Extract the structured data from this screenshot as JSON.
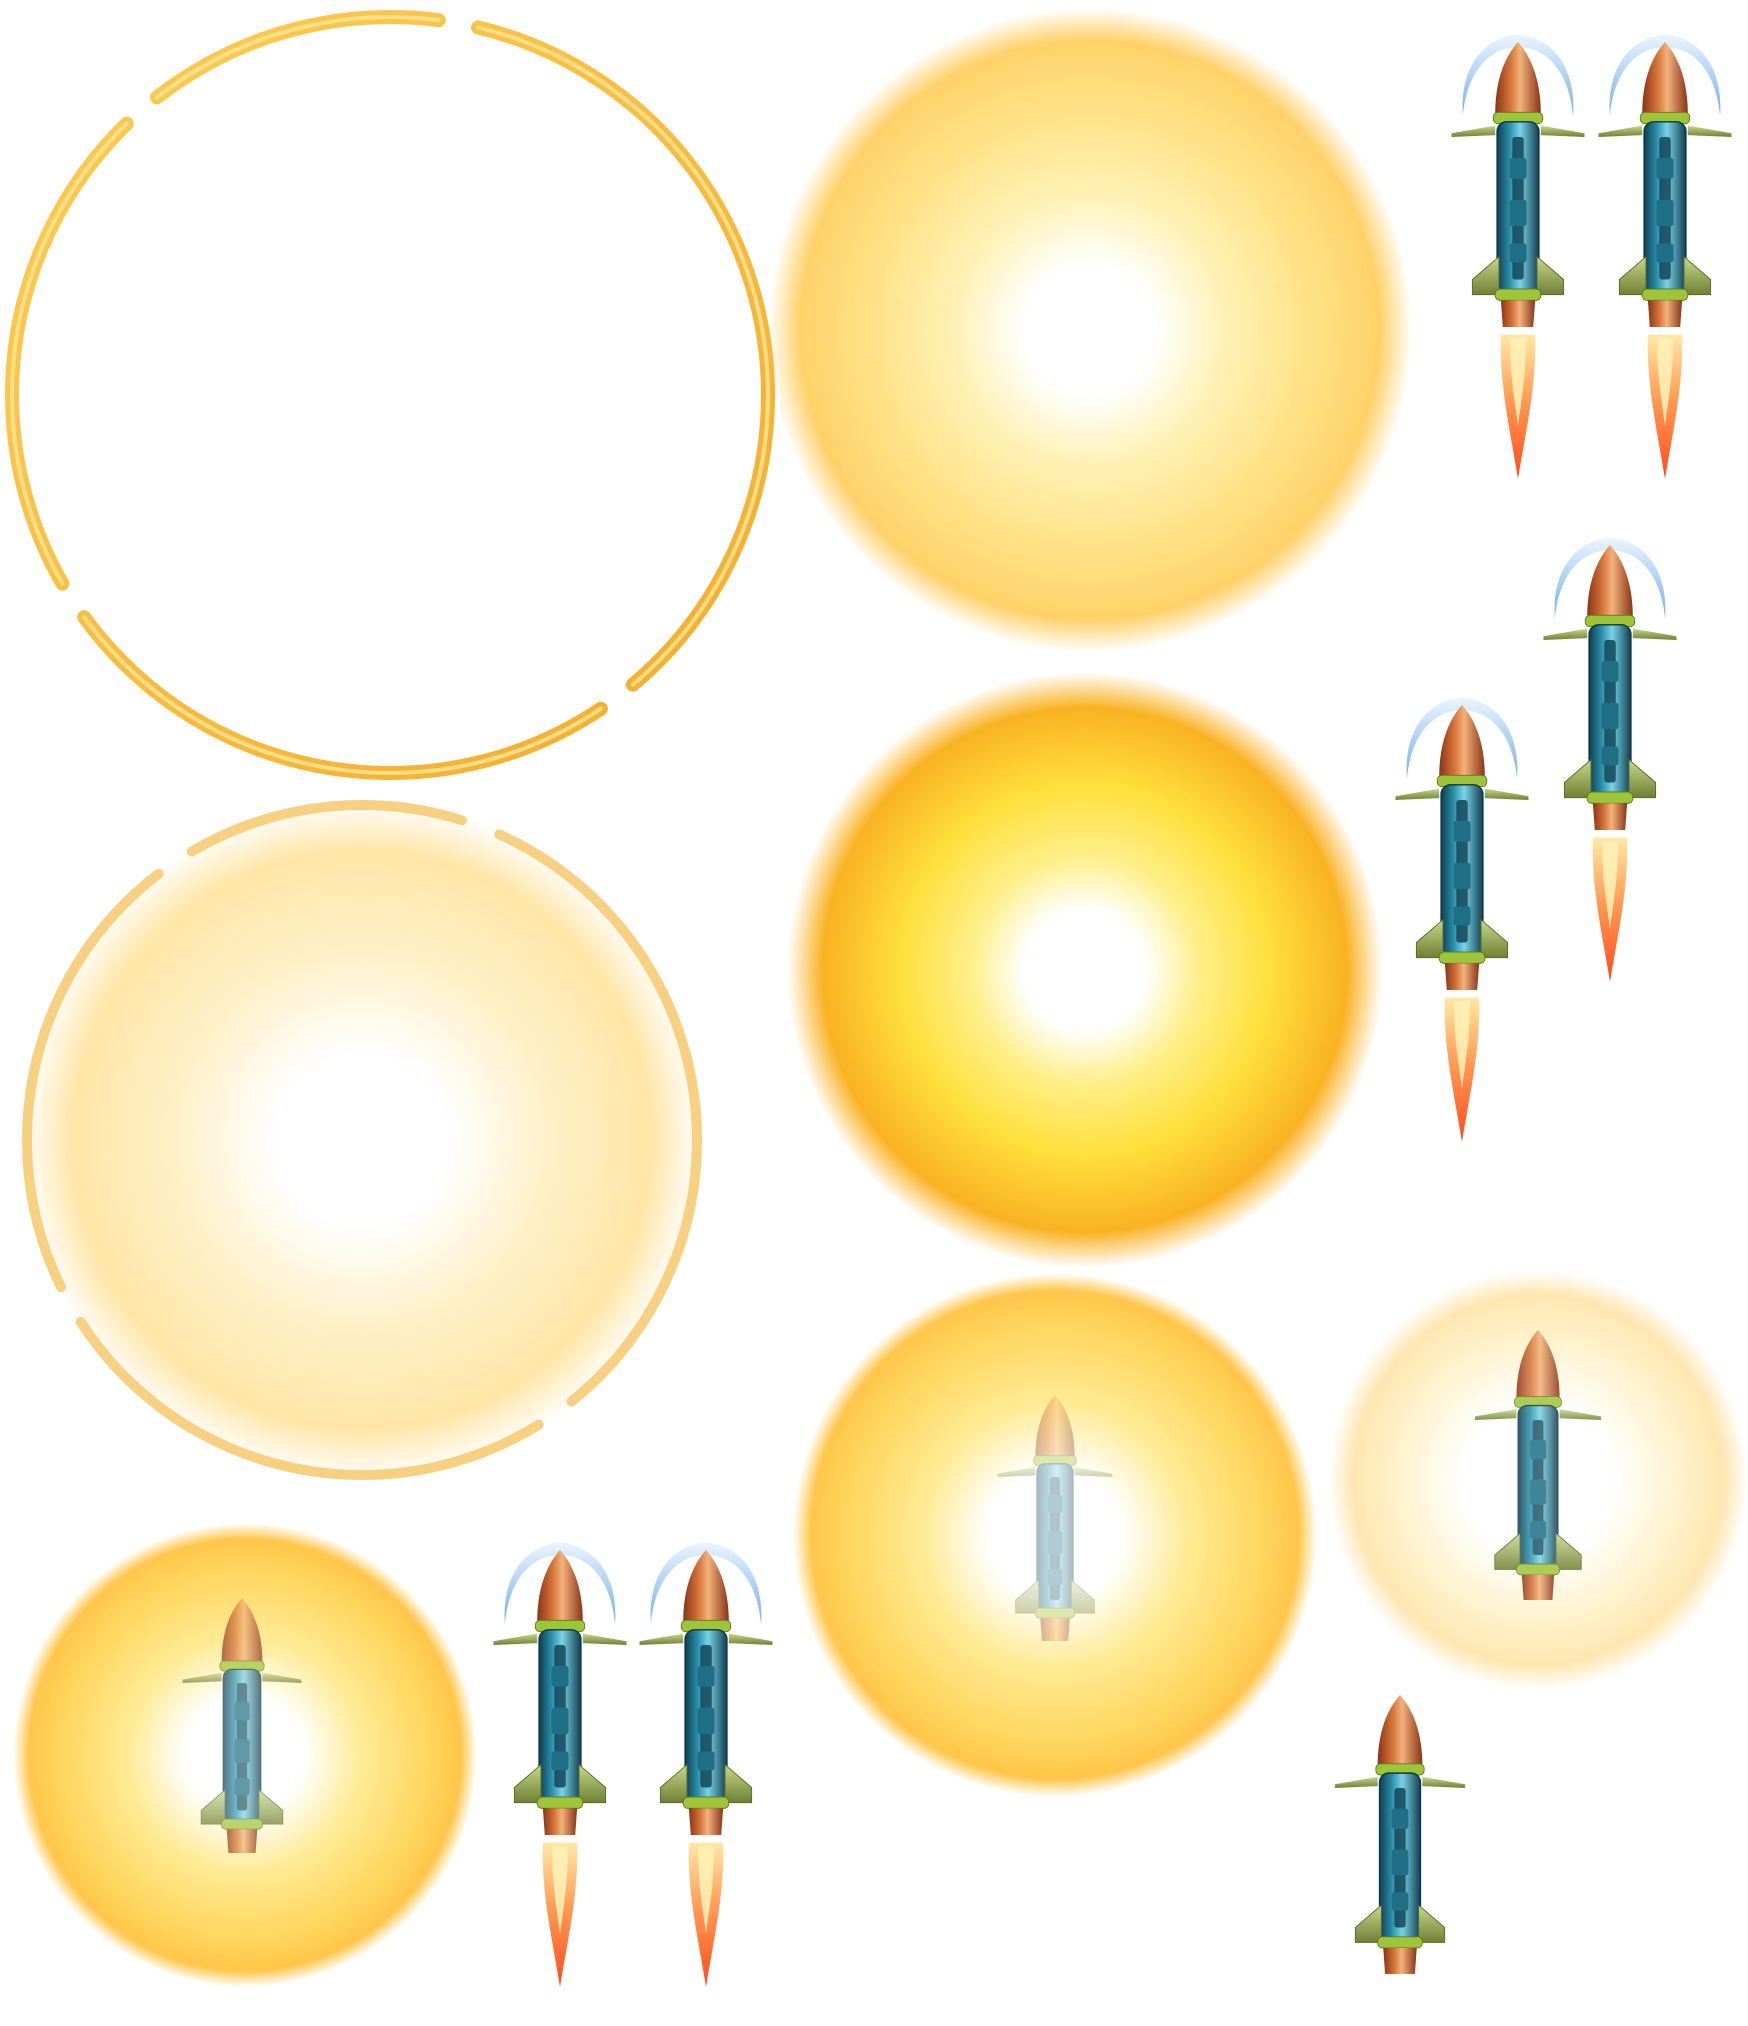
{
  "sprite_sheet": {
    "background_color": "#ffffff",
    "palette": {
      "ring_gold": "#f2b53a",
      "ring_gold_light": "#ffd77a",
      "glow_yellow": "#ffd54a",
      "glow_orange": "#f7a81e",
      "glow_pale": "#ffe7a8",
      "glow_white": "#ffffff",
      "nose_cone_copper": "#c8662a",
      "nose_cone_light": "#f0b078",
      "body_teal": "#2f9fb8",
      "body_teal_dark": "#1d5f75",
      "body_teal_light": "#7fd8ea",
      "fin_olive": "#8fa14a",
      "fin_olive_light": "#c4d57a",
      "band_green": "#9ec43a",
      "flame_orange": "#ff6a2b",
      "flame_yellow": "#ffd06a",
      "shield_arc_blue": "#7fb7e8"
    },
    "sprites": [
      {
        "name": "broken-ring-frame",
        "kind": "ring"
      },
      {
        "name": "explosion-glow-large",
        "kind": "glow"
      },
      {
        "name": "missile-with-shield-and-flame",
        "kind": "missile"
      },
      {
        "name": "missile-with-shield-and-flame",
        "kind": "missile"
      },
      {
        "name": "missile-with-shield-and-flame",
        "kind": "missile"
      },
      {
        "name": "missile-with-shield-and-flame",
        "kind": "missile"
      },
      {
        "name": "ring-with-glow",
        "kind": "ring-glow"
      },
      {
        "name": "explosion-glow-bright",
        "kind": "glow"
      },
      {
        "name": "explosion-glow-with-missile",
        "kind": "glow-missile"
      },
      {
        "name": "explosion-glow-with-faded-missile",
        "kind": "glow-missile"
      },
      {
        "name": "explosion-glow-with-missile-pale",
        "kind": "glow-missile"
      },
      {
        "name": "missile-with-shield-and-flame",
        "kind": "missile"
      },
      {
        "name": "missile-with-shield-and-flame",
        "kind": "missile"
      },
      {
        "name": "missile-plain",
        "kind": "missile"
      }
    ]
  }
}
